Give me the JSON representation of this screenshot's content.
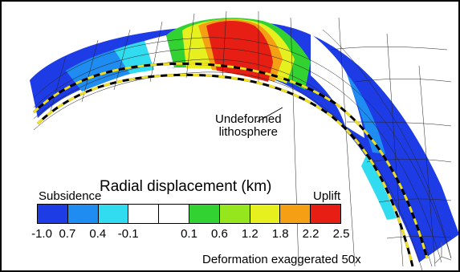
{
  "figure": {
    "annotation_label": "Undeformed\nlithosphere",
    "note": "Deformation exaggerated 50x"
  },
  "legend": {
    "title": "Radial displacement (km)",
    "left_label": "Subsidence",
    "right_label": "Uplift",
    "ticks": [
      "-1.0",
      "0.7",
      "0.4",
      "-0.1",
      "0.1",
      "0.6",
      "1.2",
      "1.8",
      "2.2",
      "2.5"
    ],
    "colors": [
      "#1e3ce6",
      "#1e8cf0",
      "#32dcf0",
      "#ffffff",
      "#ffffff",
      "#32d232",
      "#96e61e",
      "#e6f01e",
      "#f5a014",
      "#e61e14"
    ]
  },
  "colors": {
    "mesh": "#222222",
    "dash_yellow": "#f0e020",
    "dash_black": "#000000"
  }
}
